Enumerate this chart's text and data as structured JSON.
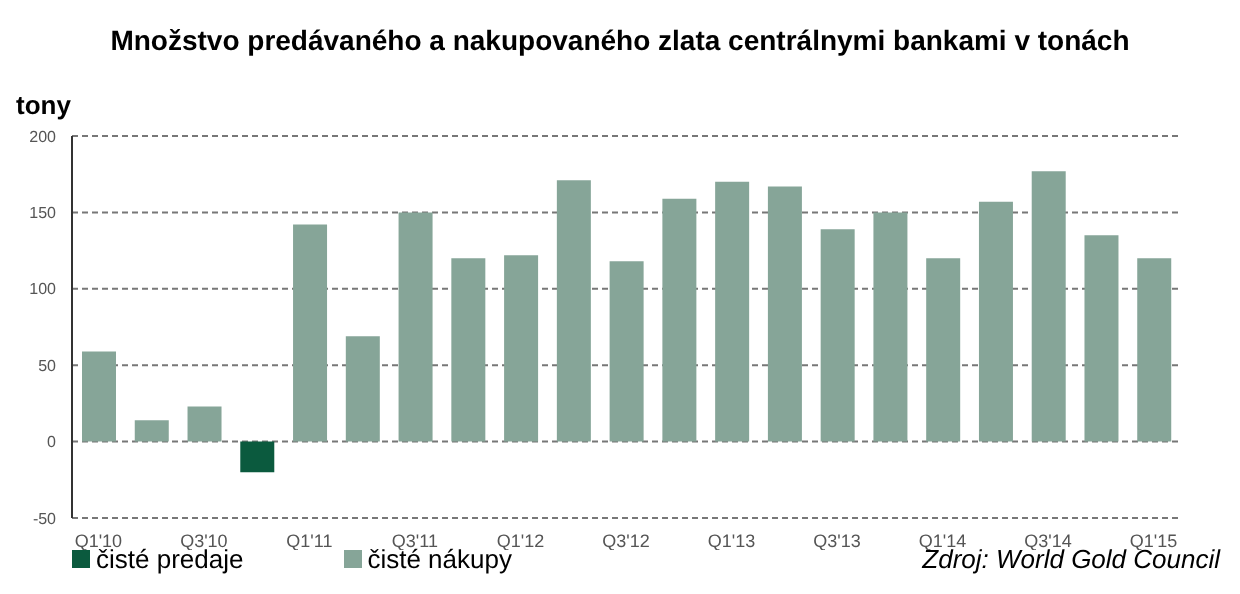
{
  "chart_data": {
    "type": "bar",
    "title": "Množstvo predávaného a nakupovaného zlata centrálnymi bankami v tonách",
    "ylabel": "tony",
    "categories": [
      "Q1'10",
      null,
      "Q3'10",
      null,
      "Q1'11",
      null,
      "Q3'11",
      null,
      "Q1'12",
      null,
      "Q3'12",
      null,
      "Q1'13",
      null,
      "Q3'13",
      null,
      "Q1'14",
      null,
      "Q3'14",
      null,
      "Q1'15"
    ],
    "series": [
      {
        "name": "čisté predaje",
        "color": "#0b5a3e",
        "values": [
          null,
          null,
          null,
          -20,
          null,
          null,
          null,
          null,
          null,
          null,
          null,
          null,
          null,
          null,
          null,
          null,
          null,
          null,
          null,
          null,
          null
        ]
      },
      {
        "name": "čisté nákupy",
        "color": "#86a598",
        "values": [
          59,
          14,
          23,
          null,
          142,
          69,
          150,
          120,
          122,
          171,
          118,
          159,
          170,
          167,
          139,
          150,
          120,
          157,
          177,
          135,
          120
        ]
      }
    ],
    "stacked": true,
    "ylim": [
      -50,
      200
    ],
    "yticks": [
      -50,
      0,
      50,
      100,
      150,
      200
    ],
    "grid": "y",
    "legend": "bottom left",
    "annotations": [
      "Zdroj: World Gold Council"
    ]
  }
}
